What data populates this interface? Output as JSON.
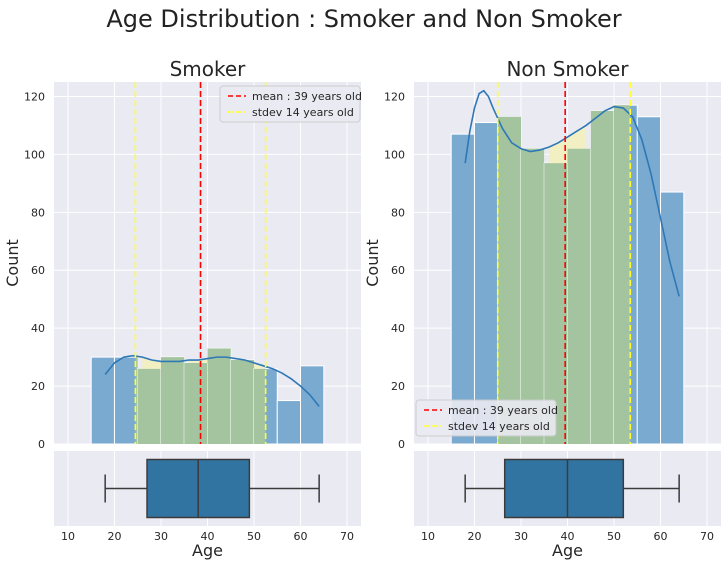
{
  "title": "Age Distribution : Smoker and Non Smoker",
  "colors": {
    "panel_bg": "#eaeaf2",
    "grid": "#ffffff",
    "bar_blue": "#7aaad0",
    "bar_green": "#a3c49e",
    "fill_yellow": "#f2f0c2",
    "kde": "#2e78b6",
    "mean_line": "#ff0000",
    "stdev_line": "#ffff33",
    "box_fill": "#3274a1",
    "box_edge": "#3b3b3b"
  },
  "chart_data": [
    {
      "type": "bar",
      "title": "Smoker",
      "ylabel": "Count",
      "xlabel": "Age",
      "xlim": [
        7,
        73
      ],
      "ylim": [
        0,
        125
      ],
      "xticks": [
        10,
        20,
        30,
        40,
        50,
        60,
        70
      ],
      "yticks": [
        0,
        20,
        40,
        60,
        80,
        100,
        120
      ],
      "bins": [
        {
          "x0": 15,
          "x1": 20,
          "value": 30
        },
        {
          "x0": 20,
          "x1": 25,
          "value": 30
        },
        {
          "x0": 25,
          "x1": 30,
          "value": 26
        },
        {
          "x0": 30,
          "x1": 35,
          "value": 30
        },
        {
          "x0": 35,
          "x1": 40,
          "value": 28
        },
        {
          "x0": 40,
          "x1": 45,
          "value": 33
        },
        {
          "x0": 45,
          "x1": 50,
          "value": 29
        },
        {
          "x0": 50,
          "x1": 55,
          "value": 26
        },
        {
          "x0": 55,
          "x1": 60,
          "value": 15
        },
        {
          "x0": 60,
          "x1": 65,
          "value": 27
        }
      ],
      "kde": {
        "x": [
          18,
          20,
          22,
          24,
          26,
          28,
          30,
          32,
          34,
          36,
          38,
          40,
          42,
          44,
          46,
          48,
          50,
          52,
          54,
          56,
          58,
          60,
          62,
          64
        ],
        "y": [
          24,
          28,
          30,
          30.5,
          30,
          29,
          28.5,
          28.5,
          28.5,
          29,
          29,
          29.5,
          30,
          30,
          29.5,
          29,
          28,
          27,
          26,
          24.5,
          22.5,
          20,
          17,
          13
        ]
      },
      "mean": 38.5,
      "stdev_lines": [
        24.5,
        52.5
      ],
      "legend": {
        "mean_label": "mean : 39 years old",
        "stdev_label": "stdev 14 years old",
        "position": "upper right"
      },
      "box": {
        "min": 18,
        "q1": 27,
        "median": 38,
        "q3": 49,
        "max": 64
      }
    },
    {
      "type": "bar",
      "title": "Non Smoker",
      "ylabel": "Count",
      "xlabel": "Age",
      "xlim": [
        7,
        73
      ],
      "ylim": [
        0,
        125
      ],
      "xticks": [
        10,
        20,
        30,
        40,
        50,
        60,
        70
      ],
      "yticks": [
        0,
        20,
        40,
        60,
        80,
        100,
        120
      ],
      "bins": [
        {
          "x0": 15,
          "x1": 20,
          "value": 107
        },
        {
          "x0": 20,
          "x1": 25,
          "value": 111
        },
        {
          "x0": 25,
          "x1": 30,
          "value": 113
        },
        {
          "x0": 30,
          "x1": 35,
          "value": 102
        },
        {
          "x0": 35,
          "x1": 40,
          "value": 97
        },
        {
          "x0": 40,
          "x1": 45,
          "value": 102
        },
        {
          "x0": 45,
          "x1": 50,
          "value": 115
        },
        {
          "x0": 50,
          "x1": 55,
          "value": 117
        },
        {
          "x0": 55,
          "x1": 60,
          "value": 113
        },
        {
          "x0": 60,
          "x1": 65,
          "value": 87
        }
      ],
      "kde": {
        "x": [
          18,
          19,
          20,
          21,
          22,
          23,
          24,
          26,
          28,
          30,
          32,
          34,
          36,
          38,
          40,
          42,
          44,
          46,
          48,
          50,
          52,
          54,
          56,
          58,
          60,
          62,
          64
        ],
        "y": [
          97,
          108,
          116,
          121,
          122,
          120,
          116,
          109,
          104,
          102,
          101,
          101.5,
          102.5,
          104,
          106,
          108,
          110,
          112.5,
          115,
          116.5,
          116,
          113,
          105,
          93,
          78,
          63,
          51
        ]
      },
      "mean": 39.5,
      "stdev_lines": [
        25,
        53.5
      ],
      "legend": {
        "mean_label": "mean : 39 years old",
        "stdev_label": "stdev 14 years old",
        "position": "lower left"
      },
      "box": {
        "min": 18,
        "q1": 26.5,
        "median": 40,
        "q3": 52,
        "max": 64
      }
    }
  ]
}
